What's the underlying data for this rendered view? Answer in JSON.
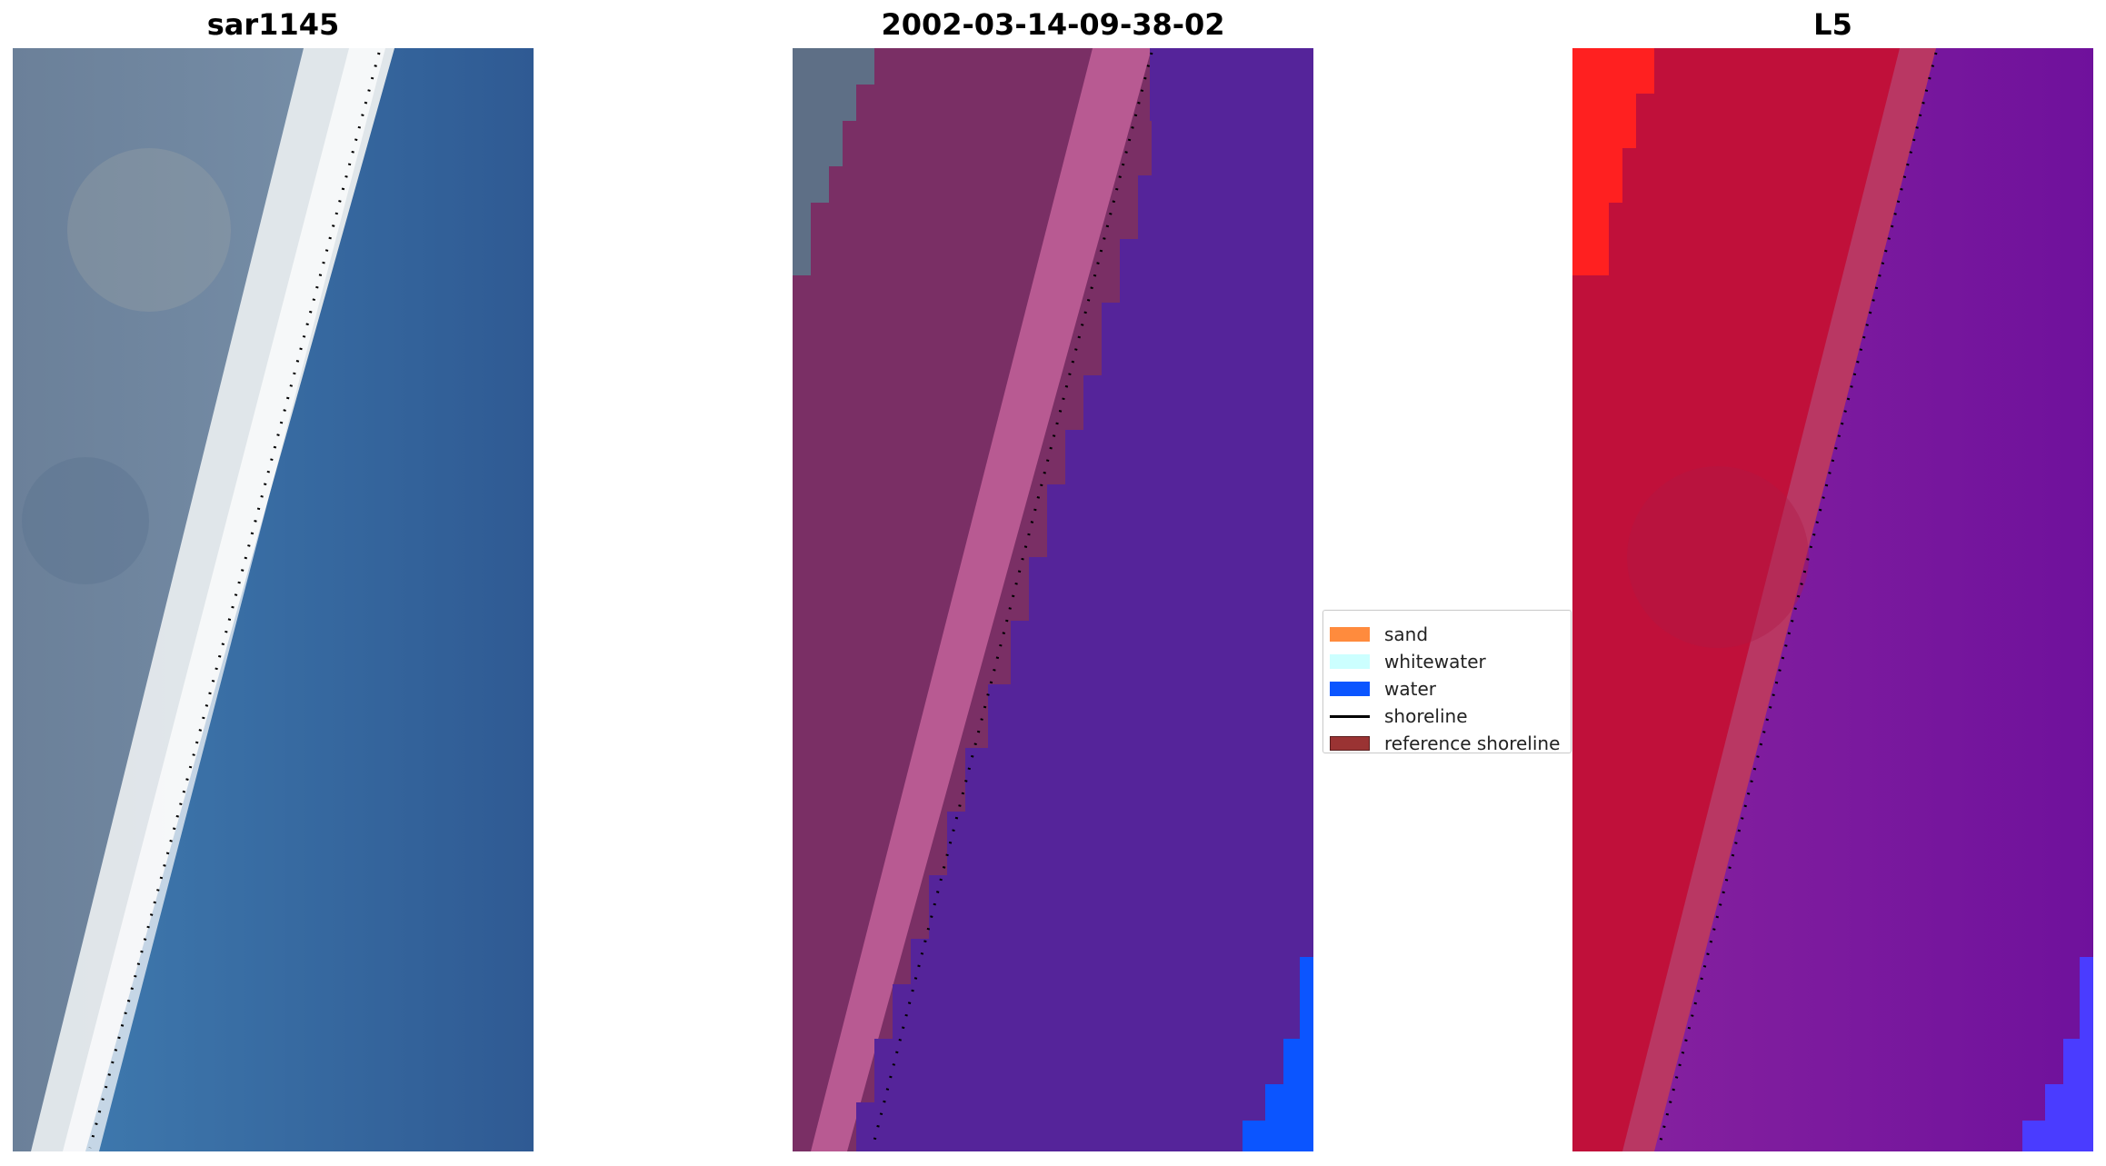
{
  "panels": [
    {
      "title": "sar1145"
    },
    {
      "title": "2002-03-14-09-38-02"
    },
    {
      "title": "L5"
    }
  ],
  "legend": {
    "items": [
      {
        "label": "sand",
        "color": "#ff8b3d",
        "kind": "patch"
      },
      {
        "label": "whitewater",
        "color": "#ccffff",
        "kind": "patch"
      },
      {
        "label": "water",
        "color": "#0b55ff",
        "kind": "patch"
      },
      {
        "label": "shoreline",
        "color": "#000000",
        "kind": "line"
      },
      {
        "label": "reference shoreline",
        "color": "#9a3333",
        "kind": "patch"
      }
    ]
  },
  "colors": {
    "sar_land": "#6e8aa6",
    "sar_water": "#3a70a8",
    "sar_whitewater": "#f3f7f8",
    "class_land": "#7a2f65",
    "class_land_edge": "#bb5c95",
    "class_water": "#55249a",
    "class_bright_water": "#0b55ff",
    "l5_land": "#c0103a",
    "l5_land_bright": "#ff2020",
    "l5_water": "#76149e",
    "l5_bright_water": "#3f39ff",
    "shoreline": "#000000"
  }
}
